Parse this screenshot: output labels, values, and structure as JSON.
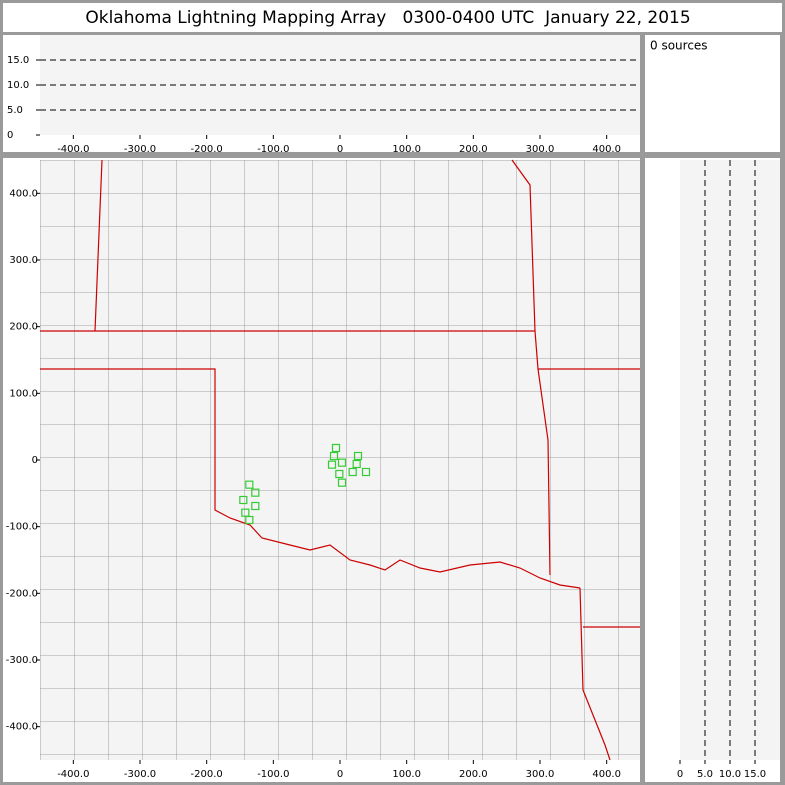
{
  "title": "Oklahoma Lightning Mapping Array   0300-0400 UTC  January 22, 2015",
  "chart_data": [
    {
      "type": "scatter",
      "annotation": "0 sources",
      "xlim": [
        -450,
        450
      ],
      "xticks": [
        {
          "value": -400,
          "label": "-400.0"
        },
        {
          "value": -300,
          "label": "-300.0"
        },
        {
          "value": -200,
          "label": "-200.0"
        },
        {
          "value": -100,
          "label": "-100.0"
        },
        0,
        {
          "value": 100,
          "label": "100.0"
        },
        {
          "value": 200,
          "label": "200.0"
        },
        {
          "value": 300,
          "label": "300.0"
        },
        {
          "value": 400,
          "label": "400.0"
        }
      ],
      "ylim": [
        0,
        20
      ],
      "yticks": [
        0,
        {
          "value": 5,
          "label": "5.0"
        },
        {
          "value": 10,
          "label": "10.0"
        },
        {
          "value": 15,
          "label": "15.0"
        }
      ],
      "grid": "y",
      "grid_style": "dashed"
    },
    {
      "type": "scatter",
      "color": "#33cc33",
      "x": [
        -6,
        -9,
        -12,
        3,
        27,
        25,
        19,
        39,
        -1,
        3,
        -136,
        -127,
        -145,
        -127,
        -142,
        -136
      ],
      "y": [
        18,
        6,
        -7,
        -4,
        6,
        -6,
        -18,
        -18,
        -21,
        -34,
        -37,
        -49,
        -60,
        -69,
        -79,
        -90
      ],
      "xlim": [
        -450,
        450
      ],
      "xticks": [
        {
          "value": -400,
          "label": "-400.0"
        },
        {
          "value": -300,
          "label": "-300.0"
        },
        {
          "value": -200,
          "label": "-200.0"
        },
        {
          "value": -100,
          "label": "-100.0"
        },
        0,
        {
          "value": 100,
          "label": "100.0"
        },
        {
          "value": 200,
          "label": "200.0"
        },
        {
          "value": 300,
          "label": "300.0"
        },
        {
          "value": 400,
          "label": "400.0"
        }
      ],
      "ylim": [
        -450,
        450
      ],
      "yticks": [
        {
          "value": -400,
          "label": "-400.0"
        },
        {
          "value": -300,
          "label": "-300.0"
        },
        {
          "value": -200,
          "label": "-200.0"
        },
        {
          "value": -100,
          "label": "-100.0"
        },
        0,
        {
          "value": 100,
          "label": "100.0"
        },
        {
          "value": 200,
          "label": "200.0"
        },
        {
          "value": 300,
          "label": "300.0"
        },
        {
          "value": 400,
          "label": "400.0"
        }
      ]
    },
    {
      "type": "scatter",
      "xlim": [
        0,
        20
      ],
      "xticks": [
        0,
        {
          "value": 5,
          "label": "5.0"
        },
        {
          "value": 10,
          "label": "10.0"
        },
        {
          "value": 15,
          "label": "15.0"
        }
      ],
      "ylim": [
        -450,
        450
      ],
      "yticks": [
        {
          "value": -400,
          "label": "-400.0"
        },
        {
          "value": -300,
          "label": "-300.0"
        },
        {
          "value": -200,
          "label": "-200.0"
        },
        {
          "value": -100,
          "label": "-100.0"
        },
        0,
        {
          "value": 100,
          "label": "100.0"
        },
        {
          "value": 200,
          "label": "200.0"
        },
        {
          "value": 300,
          "label": "300.0"
        },
        {
          "value": 400,
          "label": "400.0"
        }
      ],
      "grid": "x",
      "grid_style": "dashed"
    }
  ]
}
